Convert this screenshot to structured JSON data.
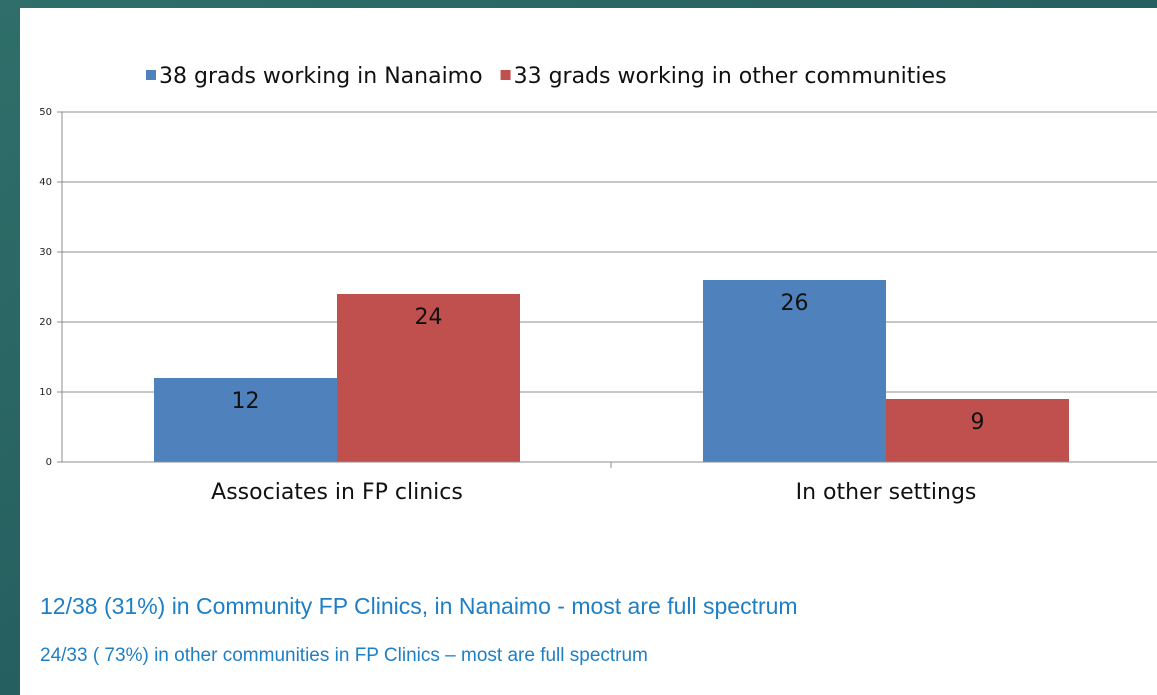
{
  "chart_data": {
    "type": "bar",
    "categories": [
      "Associates in FP clinics",
      "In other settings"
    ],
    "series": [
      {
        "name": "38 grads working in Nanaimo",
        "color": "#4f81bd",
        "values": [
          12,
          26
        ]
      },
      {
        "name": "33 grads working in other communities",
        "color": "#c0504d",
        "values": [
          24,
          9
        ]
      }
    ],
    "ylim": [
      0,
      50
    ],
    "yticks": [
      0,
      10,
      20,
      30,
      40,
      50
    ],
    "grid": true,
    "legend": "top",
    "annotations": [
      "12/38 (31%) in Community FP Clinics, in Nanaimo - most are full spectrum",
      "24/33 ( 73%) in other communities in FP Clinics – most are full spectrum"
    ]
  }
}
